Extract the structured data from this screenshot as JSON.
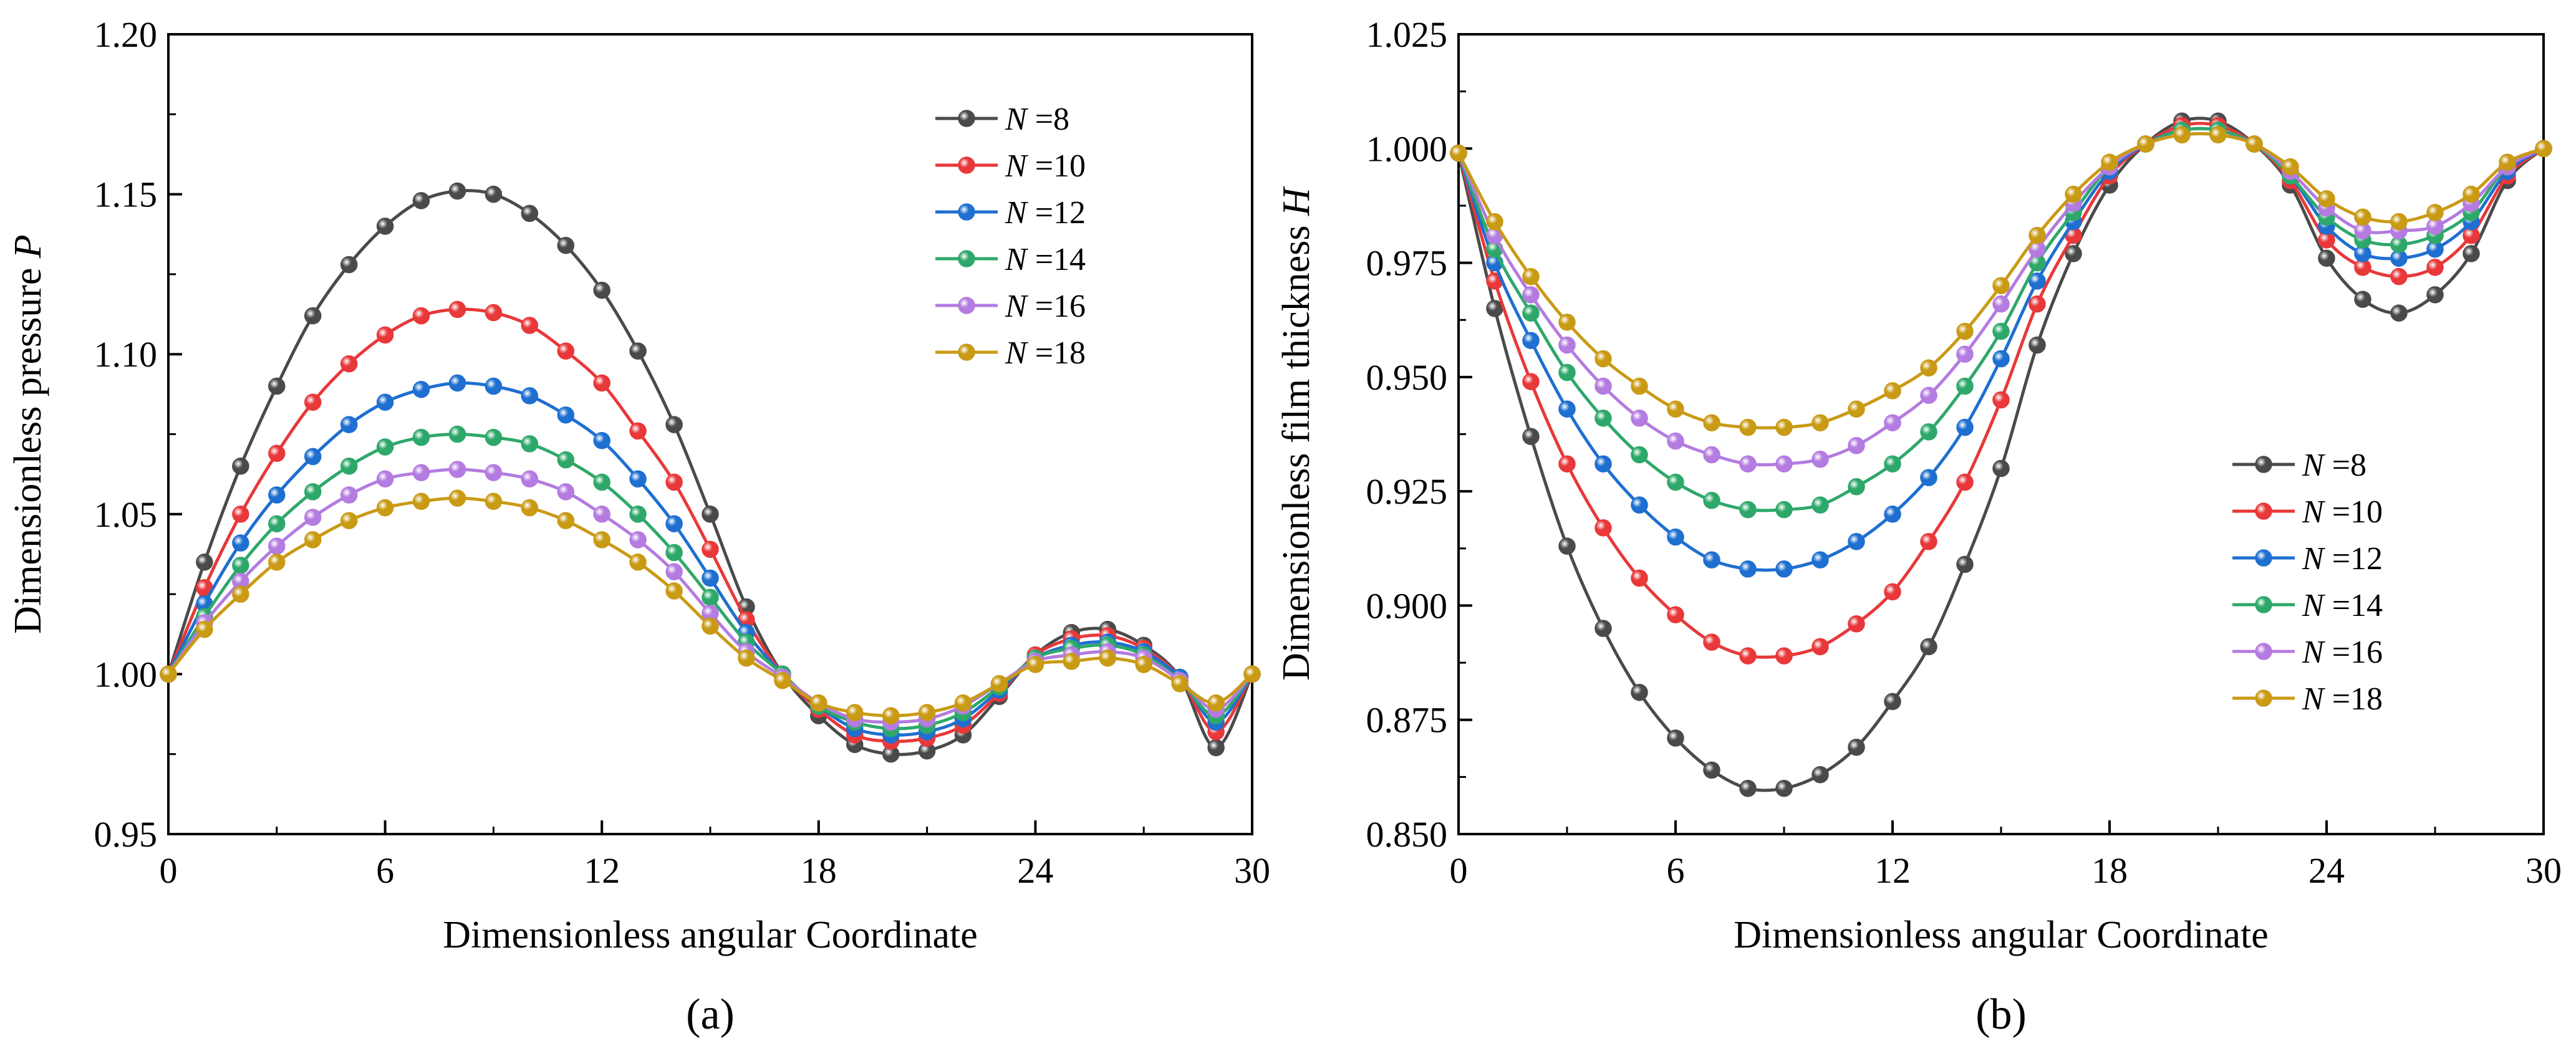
{
  "chart_data": [
    {
      "type": "line",
      "panel_label": "(a)",
      "title": "",
      "xlabel": "Dimensionless angular Coordinate",
      "ylabel_main": "Dimensionless pressure ",
      "ylabel_symbol": "P",
      "xlim": [
        0,
        30
      ],
      "ylim": [
        0.95,
        1.2
      ],
      "xticks": [
        0,
        6,
        12,
        18,
        24,
        30
      ],
      "xtick_labels": [
        "0",
        "6",
        "12",
        "18",
        "24",
        "30"
      ],
      "yticks": [
        0.95,
        1.0,
        1.05,
        1.1,
        1.15,
        1.2
      ],
      "ytick_labels": [
        "0.95",
        "1.00",
        "1.05",
        "1.10",
        "1.15",
        "1.20"
      ],
      "legend_position": "top-right",
      "x": [
        0,
        1,
        2,
        3,
        4,
        5,
        6,
        7,
        8,
        9,
        10,
        11,
        12,
        13,
        14,
        15,
        16,
        17,
        18,
        19,
        20,
        21,
        22,
        23,
        24,
        25,
        26,
        27,
        28,
        29,
        30
      ],
      "series": [
        {
          "name": "N =8",
          "label_symbol": "N",
          "label_value": " =8",
          "color": "#4a4a4a",
          "values": [
            1.0,
            1.035,
            1.065,
            1.09,
            1.112,
            1.128,
            1.14,
            1.148,
            1.151,
            1.15,
            1.144,
            1.134,
            1.12,
            1.101,
            1.078,
            1.05,
            1.021,
            1.0,
            0.987,
            0.978,
            0.975,
            0.976,
            0.981,
            0.993,
            1.006,
            1.013,
            1.014,
            1.009,
            0.999,
            0.977,
            1.0
          ]
        },
        {
          "name": "N =10",
          "label_symbol": "N",
          "label_value": " =10",
          "color": "#e8383a",
          "values": [
            1.0,
            1.027,
            1.05,
            1.069,
            1.085,
            1.097,
            1.106,
            1.112,
            1.114,
            1.113,
            1.109,
            1.101,
            1.091,
            1.076,
            1.06,
            1.039,
            1.017,
            1.0,
            0.989,
            0.981,
            0.979,
            0.98,
            0.984,
            0.994,
            1.006,
            1.011,
            1.012,
            1.008,
            0.999,
            0.982,
            1.0
          ]
        },
        {
          "name": "N =12",
          "label_symbol": "N",
          "label_value": " =12",
          "color": "#1e6fd0",
          "values": [
            1.0,
            1.022,
            1.041,
            1.056,
            1.068,
            1.078,
            1.085,
            1.089,
            1.091,
            1.09,
            1.087,
            1.081,
            1.073,
            1.061,
            1.047,
            1.03,
            1.013,
            1.0,
            0.99,
            0.983,
            0.981,
            0.982,
            0.986,
            0.995,
            1.005,
            1.009,
            1.01,
            1.007,
            0.999,
            0.985,
            1.0
          ]
        },
        {
          "name": "N =14",
          "label_symbol": "N",
          "label_value": " =14",
          "color": "#2ea86a",
          "values": [
            1.0,
            1.018,
            1.034,
            1.047,
            1.057,
            1.065,
            1.071,
            1.074,
            1.075,
            1.074,
            1.072,
            1.067,
            1.06,
            1.05,
            1.038,
            1.024,
            1.01,
            1.0,
            0.99,
            0.985,
            0.983,
            0.984,
            0.988,
            0.996,
            1.005,
            1.008,
            1.009,
            1.006,
            0.998,
            0.987,
            1.0
          ]
        },
        {
          "name": "N =16",
          "label_symbol": "N",
          "label_value": " =16",
          "color": "#b47be0",
          "values": [
            1.0,
            1.016,
            1.029,
            1.04,
            1.049,
            1.056,
            1.061,
            1.063,
            1.064,
            1.063,
            1.061,
            1.057,
            1.05,
            1.042,
            1.032,
            1.019,
            1.007,
            0.999,
            0.991,
            0.986,
            0.985,
            0.986,
            0.99,
            0.997,
            1.004,
            1.006,
            1.007,
            1.005,
            0.998,
            0.989,
            1.0
          ]
        },
        {
          "name": "N =18",
          "label_symbol": "N",
          "label_value": " =18",
          "color": "#c99a14",
          "values": [
            1.0,
            1.014,
            1.025,
            1.035,
            1.042,
            1.048,
            1.052,
            1.054,
            1.055,
            1.054,
            1.052,
            1.048,
            1.042,
            1.035,
            1.026,
            1.015,
            1.005,
            0.998,
            0.991,
            0.988,
            0.987,
            0.988,
            0.991,
            0.997,
            1.003,
            1.004,
            1.005,
            1.003,
            0.997,
            0.991,
            1.0
          ]
        }
      ]
    },
    {
      "type": "line",
      "panel_label": "(b)",
      "title": "",
      "xlabel": "Dimensionless angular Coordinate",
      "ylabel_main": "Dimensionless film thickness ",
      "ylabel_symbol": "H",
      "xlim": [
        0,
        30
      ],
      "ylim": [
        0.85,
        1.025
      ],
      "xticks": [
        0,
        6,
        12,
        18,
        24,
        30
      ],
      "xtick_labels": [
        "0",
        "6",
        "12",
        "18",
        "24",
        "30"
      ],
      "yticks": [
        0.85,
        0.875,
        0.9,
        0.925,
        0.95,
        0.975,
        1.0,
        1.025
      ],
      "ytick_labels": [
        "0.850",
        "0.875",
        "0.900",
        "0.925",
        "0.950",
        "0.975",
        "1.000",
        "1.025"
      ],
      "legend_position": "lower-right",
      "x": [
        0,
        1,
        2,
        3,
        4,
        5,
        6,
        7,
        8,
        9,
        10,
        11,
        12,
        13,
        14,
        15,
        16,
        17,
        18,
        19,
        20,
        21,
        22,
        23,
        24,
        25,
        26,
        27,
        28,
        29,
        30
      ],
      "series": [
        {
          "name": "N =8",
          "label_symbol": "N",
          "label_value": " =8",
          "color": "#4a4a4a",
          "values": [
            0.999,
            0.965,
            0.937,
            0.913,
            0.895,
            0.881,
            0.871,
            0.864,
            0.86,
            0.86,
            0.863,
            0.869,
            0.879,
            0.891,
            0.909,
            0.93,
            0.957,
            0.977,
            0.992,
            1.001,
            1.006,
            1.006,
            1.001,
            0.992,
            0.976,
            0.967,
            0.964,
            0.968,
            0.977,
            0.993,
            1.0
          ]
        },
        {
          "name": "N =10",
          "label_symbol": "N",
          "label_value": " =10",
          "color": "#e8383a",
          "values": [
            0.999,
            0.971,
            0.949,
            0.931,
            0.917,
            0.906,
            0.898,
            0.892,
            0.889,
            0.889,
            0.891,
            0.896,
            0.903,
            0.914,
            0.927,
            0.945,
            0.966,
            0.981,
            0.994,
            1.001,
            1.005,
            1.005,
            1.001,
            0.993,
            0.98,
            0.974,
            0.972,
            0.974,
            0.981,
            0.994,
            1.0
          ]
        },
        {
          "name": "N =12",
          "label_symbol": "N",
          "label_value": " =12",
          "color": "#1e6fd0",
          "values": [
            0.999,
            0.975,
            0.958,
            0.943,
            0.931,
            0.922,
            0.915,
            0.91,
            0.908,
            0.908,
            0.91,
            0.914,
            0.92,
            0.928,
            0.939,
            0.954,
            0.971,
            0.984,
            0.995,
            1.001,
            1.004,
            1.004,
            1.001,
            0.994,
            0.983,
            0.977,
            0.976,
            0.978,
            0.984,
            0.995,
            1.0
          ]
        },
        {
          "name": "N =14",
          "label_symbol": "N",
          "label_value": " =14",
          "color": "#2ea86a",
          "values": [
            0.999,
            0.978,
            0.964,
            0.951,
            0.941,
            0.933,
            0.927,
            0.923,
            0.921,
            0.921,
            0.922,
            0.926,
            0.931,
            0.938,
            0.948,
            0.96,
            0.975,
            0.986,
            0.996,
            1.001,
            1.004,
            1.004,
            1.001,
            0.994,
            0.985,
            0.98,
            0.979,
            0.981,
            0.986,
            0.996,
            1.0
          ]
        },
        {
          "name": "N =16",
          "label_symbol": "N",
          "label_value": " =16",
          "color": "#b47be0",
          "values": [
            0.999,
            0.981,
            0.968,
            0.957,
            0.948,
            0.941,
            0.936,
            0.933,
            0.931,
            0.931,
            0.932,
            0.935,
            0.94,
            0.946,
            0.955,
            0.966,
            0.978,
            0.988,
            0.996,
            1.001,
            1.003,
            1.003,
            1.001,
            0.995,
            0.987,
            0.982,
            0.982,
            0.983,
            0.988,
            0.996,
            1.0
          ]
        },
        {
          "name": "N =18",
          "label_symbol": "N",
          "label_value": " =18",
          "color": "#c99a14",
          "values": [
            0.999,
            0.984,
            0.972,
            0.962,
            0.954,
            0.948,
            0.943,
            0.94,
            0.939,
            0.939,
            0.94,
            0.943,
            0.947,
            0.952,
            0.96,
            0.97,
            0.981,
            0.99,
            0.997,
            1.001,
            1.003,
            1.003,
            1.001,
            0.996,
            0.989,
            0.985,
            0.984,
            0.986,
            0.99,
            0.997,
            1.0
          ]
        }
      ]
    }
  ]
}
